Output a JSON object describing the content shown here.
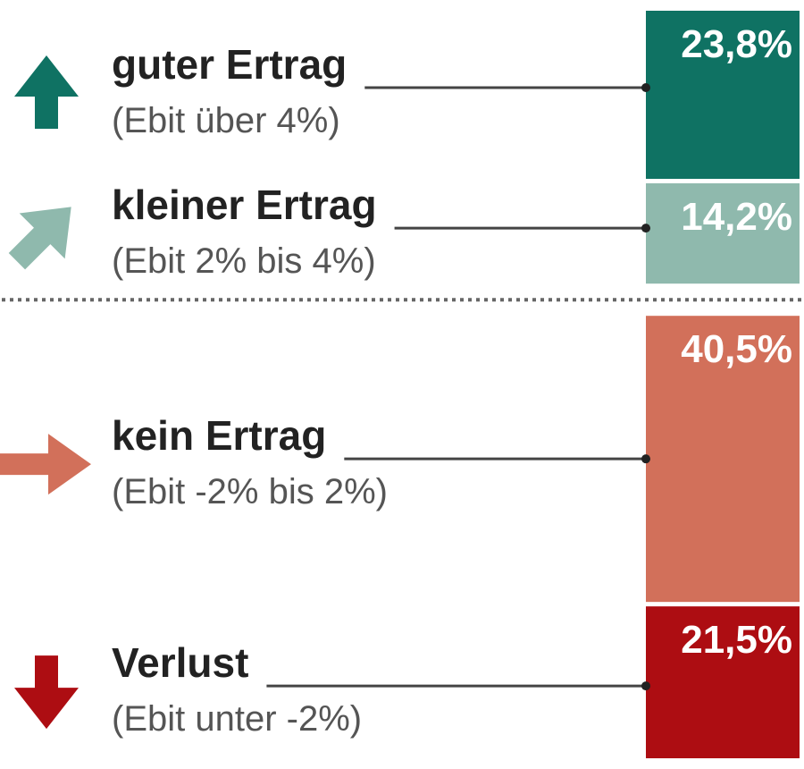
{
  "chart_data": {
    "type": "bar",
    "stacked": true,
    "orientation": "vertical",
    "categories": [
      {
        "label": "guter Ertrag",
        "sublabel": "(Ebit über 4%)",
        "value": 23.8,
        "display": "23,8%",
        "color": "#0f7263",
        "icon": "arrow-up-icon"
      },
      {
        "label": "kleiner Ertrag",
        "sublabel": "(Ebit 2% bis 4%)",
        "value": 14.2,
        "display": "14,2%",
        "color": "#8fb9ad",
        "icon": "arrow-up-right-icon"
      },
      {
        "label": "kein Ertrag",
        "sublabel": "(Ebit -2% bis 2%)",
        "value": 40.5,
        "display": "40,5%",
        "color": "#d2705a",
        "icon": "arrow-right-icon"
      },
      {
        "label": "Verlust",
        "sublabel": "(Ebit unter -2%)",
        "value": 21.5,
        "display": "21,5%",
        "color": "#ad0d12",
        "icon": "arrow-down-icon"
      }
    ],
    "separator_after_index": 1,
    "separator_style": "dotted"
  }
}
